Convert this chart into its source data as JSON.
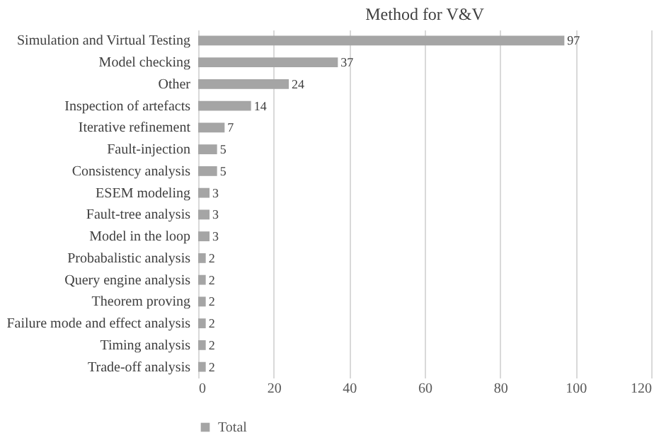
{
  "chart_data": {
    "type": "bar",
    "orientation": "horizontal",
    "title": "Method for V&V",
    "categories": [
      "Simulation and Virtual Testing",
      "Model checking",
      "Other",
      "Inspection of artefacts",
      "Iterative refinement",
      "Fault-injection",
      "Consistency analysis",
      "ESEM modeling",
      "Fault-tree analysis",
      "Model in the loop",
      "Probabalistic analysis",
      "Query engine analysis",
      "Theorem proving",
      "Failure mode and effect analysis",
      "Timing analysis",
      "Trade-off analysis"
    ],
    "series": [
      {
        "name": "Total",
        "color": "#a5a5a5",
        "values": [
          97,
          37,
          24,
          14,
          7,
          5,
          5,
          3,
          3,
          3,
          2,
          2,
          2,
          2,
          2,
          2
        ]
      }
    ],
    "xlim": [
      0,
      120
    ],
    "xticks": [
      0,
      20,
      40,
      60,
      80,
      100,
      120
    ],
    "grid": "x",
    "data_labels": true,
    "legend": "bottom"
  }
}
